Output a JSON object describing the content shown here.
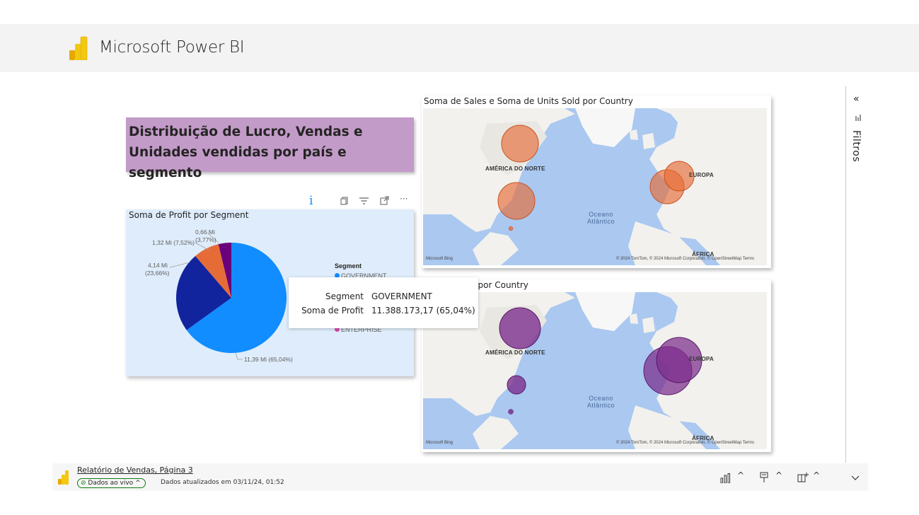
{
  "app": {
    "title": "Microsoft Power BI"
  },
  "report": {
    "heading": "Distribuição de Lucro, Vendas e Unidades vendidas por país e segmento",
    "heading_line1": "Distribuição de Lucro, Vendas e",
    "heading_line2": "Unidades vendidas por país e segmento"
  },
  "visual_header": {
    "icons": [
      "info-icon",
      "copy-icon",
      "filter-icon",
      "focus-mode-icon",
      "more-options-icon"
    ]
  },
  "pie_visual": {
    "title": "Soma de Profit por Segment",
    "legend_title": "Segment",
    "legend_items": [
      {
        "label": "GOVERNMENT",
        "color": "#118dff"
      },
      {
        "label": "ENTERPRISE",
        "color": "#e044a7"
      }
    ],
    "data_labels": {
      "government": "11,39 Mi (65,04%)",
      "small_a_value": "4,14 Mi",
      "small_a_pct": "(23,66%)",
      "small_b": "1,32 Mi (7,52%)",
      "small_c_value": "0,66 Mi",
      "small_c_pct": "(3,77%)"
    }
  },
  "chart_data": {
    "type": "pie",
    "title": "Soma de Profit por Segment",
    "legend_title": "Segment",
    "categories": [
      "GOVERNMENT",
      "",
      "",
      ""
    ],
    "values": [
      11.39,
      4.14,
      1.32,
      0.66
    ],
    "percentages": [
      65.04,
      23.66,
      7.52,
      3.77
    ],
    "colors": [
      "#118dff",
      "#12239e",
      "#e66c37",
      "#6b007b"
    ]
  },
  "tooltip": {
    "rows": [
      {
        "key": "Segment",
        "value": "GOVERNMENT"
      },
      {
        "key": "Soma de Profit",
        "value": "11.388.173,17 (65,04%)"
      }
    ]
  },
  "map_top": {
    "title": "Soma de Sales e Soma de Units Sold por Country",
    "bubble_color": "#e66c37",
    "labels": {
      "north_america": "AMÉRICA DO NORTE",
      "europe": "EUROPA",
      "africa": "ÁFRICA",
      "ocean_line1": "Oceano",
      "ocean_line2": "Atlântico"
    },
    "bing": "Microsoft Bing",
    "copyright": "© 2024 TomTom, © 2024 Microsoft Corporation, © OpenStreetMap  Terms"
  },
  "map_bottom": {
    "title_visible": "t por Country",
    "bubble_color": "#7b2c8c",
    "labels": {
      "north_america": "AMÉRICA DO NORTE",
      "europe": "EUROPA",
      "africa": "ÁFRICA",
      "ocean_line1": "Oceano",
      "ocean_line2": "Atlântico"
    },
    "bing": "Microsoft Bing",
    "copyright": "© 2024 TomTom, © 2024 Microsoft Corporation, © OpenStreetMap  Terms"
  },
  "filters": {
    "label": "Filtros",
    "collapse": "«"
  },
  "footer": {
    "report_link": "Relatório de Vendas, Página 3",
    "live_label": "Dados ao vivo",
    "updated": "Dados atualizados em 03/11/24, 01:52"
  }
}
